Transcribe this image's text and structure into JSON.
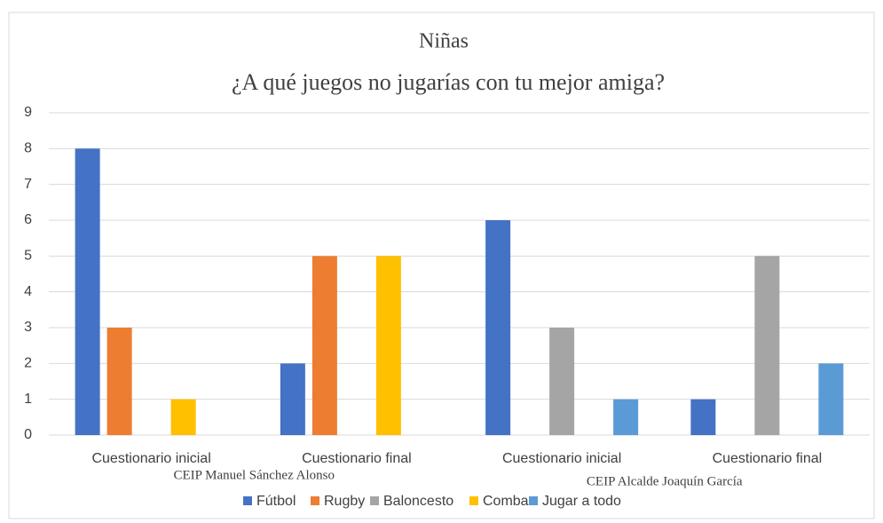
{
  "chart_data": {
    "type": "bar",
    "title": "Niñas",
    "subtitle": "¿A qué juegos no jugarías con tu mejor amiga?",
    "categories": [
      "Cuestionario inicial",
      "Cuestionario final",
      "Cuestionario inicial",
      "Cuestionario final"
    ],
    "group_labels": [
      "CEIP Manuel Sánchez Alonso",
      "CEIP Alcalde Joaquín García"
    ],
    "series": [
      {
        "name": "Fútbol",
        "color": "#4472c4",
        "values": [
          8,
          2,
          6,
          1
        ]
      },
      {
        "name": "Rugby",
        "color": "#ed7d31",
        "values": [
          3,
          5,
          0,
          0
        ]
      },
      {
        "name": "Baloncesto",
        "color": "#a5a5a5",
        "values": [
          0,
          0,
          3,
          5
        ]
      },
      {
        "name": "Comba",
        "color": "#ffc000",
        "values": [
          1,
          5,
          0,
          0
        ]
      },
      {
        "name": "Jugar a todo",
        "color": "#5b9bd5",
        "values": [
          0,
          0,
          1,
          2
        ]
      }
    ],
    "ylim": [
      0,
      9
    ],
    "yticks": [
      0,
      1,
      2,
      3,
      4,
      5,
      6,
      7,
      8,
      9
    ],
    "grid": true,
    "legend": "bottom"
  }
}
